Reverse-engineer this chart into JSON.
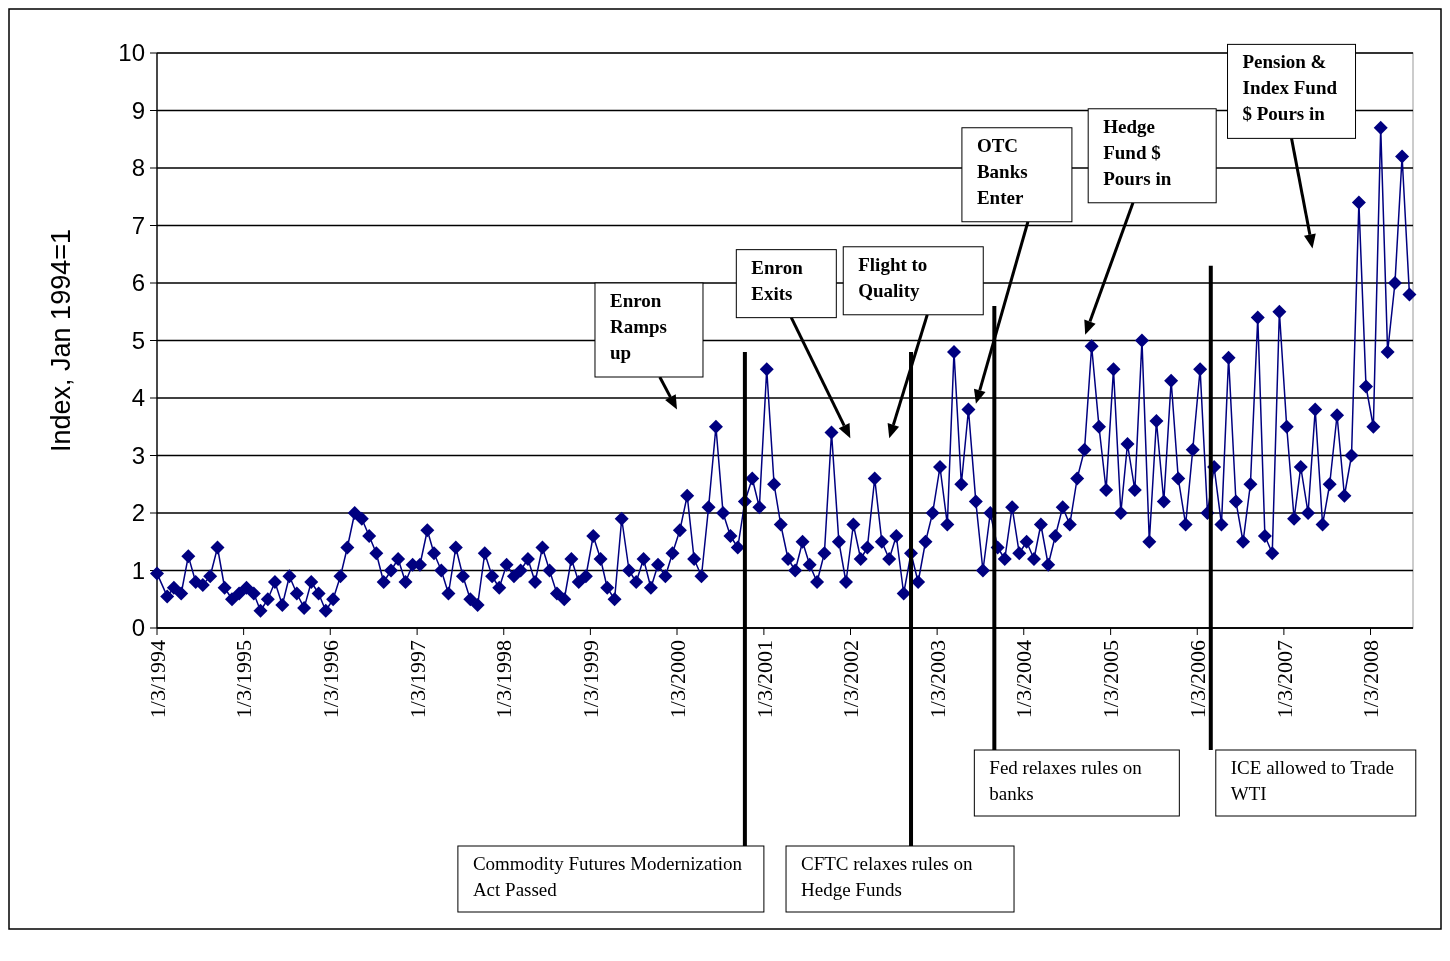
{
  "chart_data": {
    "type": "line",
    "ylabel": "Index, Jan 1994=1",
    "marker": "diamond",
    "grid": "y",
    "xlim": [
      "1994-01-03",
      "2008-06-30"
    ],
    "xticks": [
      {
        "value": "1994-01-03",
        "label": "1/3/1994"
      },
      {
        "value": "1995-01-03",
        "label": "1/3/1995"
      },
      {
        "value": "1996-01-03",
        "label": "1/3/1996"
      },
      {
        "value": "1997-01-03",
        "label": "1/3/1997"
      },
      {
        "value": "1998-01-03",
        "label": "1/3/1998"
      },
      {
        "value": "1999-01-03",
        "label": "1/3/1999"
      },
      {
        "value": "2000-01-03",
        "label": "1/3/2000"
      },
      {
        "value": "2001-01-03",
        "label": "1/3/2001"
      },
      {
        "value": "2002-01-03",
        "label": "1/3/2002"
      },
      {
        "value": "2003-01-03",
        "label": "1/3/2003"
      },
      {
        "value": "2004-01-03",
        "label": "1/3/2004"
      },
      {
        "value": "2005-01-03",
        "label": "1/3/2005"
      },
      {
        "value": "2006-01-03",
        "label": "1/3/2006"
      },
      {
        "value": "2007-01-03",
        "label": "1/3/2007"
      },
      {
        "value": "2008-01-03",
        "label": "1/3/2008"
      }
    ],
    "ylim": [
      0,
      10
    ],
    "yticks": [
      0,
      1,
      2,
      3,
      4,
      5,
      6,
      7,
      8,
      9,
      10
    ],
    "x": [
      "1994-01-03",
      "1994-02-15",
      "1994-03-15",
      "1994-04-15",
      "1994-05-15",
      "1994-06-15",
      "1994-07-15",
      "1994-08-15",
      "1994-09-15",
      "1994-10-15",
      "1994-11-15",
      "1994-12-15",
      "1995-01-15",
      "1995-02-15",
      "1995-03-15",
      "1995-04-15",
      "1995-05-15",
      "1995-06-15",
      "1995-07-15",
      "1995-08-15",
      "1995-09-15",
      "1995-10-15",
      "1995-11-15",
      "1995-12-15",
      "1996-01-15",
      "1996-02-15",
      "1996-03-15",
      "1996-04-15",
      "1996-05-15",
      "1996-06-15",
      "1996-07-15",
      "1996-08-15",
      "1996-09-15",
      "1996-10-15",
      "1996-11-15",
      "1996-12-15",
      "1997-01-15",
      "1997-02-15",
      "1997-03-15",
      "1997-04-15",
      "1997-05-15",
      "1997-06-15",
      "1997-07-15",
      "1997-08-15",
      "1997-09-15",
      "1997-10-15",
      "1997-11-15",
      "1997-12-15",
      "1998-01-15",
      "1998-02-15",
      "1998-03-15",
      "1998-04-15",
      "1998-05-15",
      "1998-06-15",
      "1998-07-15",
      "1998-08-15",
      "1998-09-15",
      "1998-10-15",
      "1998-11-15",
      "1998-12-15",
      "1999-01-15",
      "1999-02-15",
      "1999-03-15",
      "1999-04-15",
      "1999-05-15",
      "1999-06-15",
      "1999-07-15",
      "1999-08-15",
      "1999-09-15",
      "1999-10-15",
      "1999-11-15",
      "1999-12-15",
      "2000-01-15",
      "2000-02-15",
      "2000-03-15",
      "2000-04-15",
      "2000-05-15",
      "2000-06-15",
      "2000-07-15",
      "2000-08-15",
      "2000-09-15",
      "2000-10-15",
      "2000-11-15",
      "2000-12-15",
      "2001-01-15",
      "2001-02-15",
      "2001-03-15",
      "2001-04-15",
      "2001-05-15",
      "2001-06-15",
      "2001-07-15",
      "2001-08-15",
      "2001-09-15",
      "2001-10-15",
      "2001-11-15",
      "2001-12-15",
      "2002-01-15",
      "2002-02-15",
      "2002-03-15",
      "2002-04-15",
      "2002-05-15",
      "2002-06-15",
      "2002-07-15",
      "2002-08-15",
      "2002-09-15",
      "2002-10-15",
      "2002-11-15",
      "2002-12-15",
      "2003-01-15",
      "2003-02-15",
      "2003-03-15",
      "2003-04-15",
      "2003-05-15",
      "2003-06-15",
      "2003-07-15",
      "2003-08-15",
      "2003-09-15",
      "2003-10-15",
      "2003-11-15",
      "2003-12-15",
      "2004-01-15",
      "2004-02-15",
      "2004-03-15",
      "2004-04-15",
      "2004-05-15",
      "2004-06-15",
      "2004-07-15",
      "2004-08-15",
      "2004-09-15",
      "2004-10-15",
      "2004-11-15",
      "2004-12-15",
      "2005-01-15",
      "2005-02-15",
      "2005-03-15",
      "2005-04-15",
      "2005-05-15",
      "2005-06-15",
      "2005-07-15",
      "2005-08-15",
      "2005-09-15",
      "2005-10-15",
      "2005-11-15",
      "2005-12-15",
      "2006-01-15",
      "2006-02-15",
      "2006-03-15",
      "2006-04-15",
      "2006-05-15",
      "2006-06-15",
      "2006-07-15",
      "2006-08-15",
      "2006-09-15",
      "2006-10-15",
      "2006-11-15",
      "2006-12-15",
      "2007-01-15",
      "2007-02-15",
      "2007-03-15",
      "2007-04-15",
      "2007-05-15",
      "2007-06-15",
      "2007-07-15",
      "2007-08-15",
      "2007-09-15",
      "2007-10-15",
      "2007-11-15",
      "2007-12-15",
      "2008-01-15",
      "2008-02-15",
      "2008-03-15",
      "2008-04-15",
      "2008-05-15",
      "2008-06-15"
    ],
    "series": [
      {
        "color": "#000080",
        "values": [
          0.95,
          0.55,
          0.7,
          0.6,
          1.25,
          0.8,
          0.75,
          0.9,
          1.4,
          0.7,
          0.5,
          0.6,
          0.7,
          0.6,
          0.3,
          0.5,
          0.8,
          0.4,
          0.9,
          0.6,
          0.35,
          0.8,
          0.6,
          0.3,
          0.5,
          0.9,
          1.4,
          2.0,
          1.9,
          1.6,
          1.3,
          0.8,
          1.0,
          1.2,
          0.8,
          1.1,
          1.1,
          1.7,
          1.3,
          1.0,
          0.6,
          1.4,
          0.9,
          0.5,
          0.4,
          1.3,
          0.9,
          0.7,
          1.1,
          0.9,
          1.0,
          1.2,
          0.8,
          1.4,
          1.0,
          0.6,
          0.5,
          1.2,
          0.8,
          0.9,
          1.6,
          1.2,
          0.7,
          0.5,
          1.9,
          1.0,
          0.8,
          1.2,
          0.7,
          1.1,
          0.9,
          1.3,
          1.7,
          2.3,
          1.2,
          0.9,
          2.1,
          3.5,
          2.0,
          1.6,
          1.4,
          2.2,
          2.6,
          2.1,
          4.5,
          2.5,
          1.8,
          1.2,
          1.0,
          1.5,
          1.1,
          0.8,
          1.3,
          3.4,
          1.5,
          0.8,
          1.8,
          1.2,
          1.4,
          2.6,
          1.5,
          1.2,
          1.6,
          0.6,
          1.3,
          0.8,
          1.5,
          2.0,
          2.8,
          1.8,
          4.8,
          2.5,
          3.8,
          2.2,
          1.0,
          2.0,
          1.4,
          1.2,
          2.1,
          1.3,
          1.5,
          1.2,
          1.8,
          1.1,
          1.6,
          2.1,
          1.8,
          2.6,
          3.1,
          4.9,
          3.5,
          2.4,
          4.5,
          2.0,
          3.2,
          2.4,
          5.0,
          1.5,
          3.6,
          2.2,
          4.3,
          2.6,
          1.8,
          3.1,
          4.5,
          2.0,
          2.8,
          1.8,
          4.7,
          2.2,
          1.5,
          2.5,
          5.4,
          1.6,
          1.3,
          5.5,
          3.5,
          1.9,
          2.8,
          2.0,
          3.8,
          1.8,
          2.5,
          3.7,
          2.3,
          3.0,
          7.4,
          4.2,
          3.5,
          8.7,
          4.8,
          6.0,
          8.2,
          5.8
        ]
      }
    ],
    "ref_lines": [
      {
        "axis": "x",
        "value": "2000-10-15",
        "label": "Commodity Futures Modernization Act Passed",
        "color": "#000000"
      },
      {
        "axis": "x",
        "value": "2002-09-15",
        "label": "CFTC relaxes rules on Hedge Funds",
        "color": "#000000"
      },
      {
        "axis": "x",
        "value": "2003-09-01",
        "label": "Fed relaxes rules on banks",
        "color": "#000000"
      },
      {
        "axis": "x",
        "value": "2006-03-01",
        "label": "ICE allowed to Trade WTI",
        "color": "#000000"
      }
    ],
    "annotations": [
      "Enron Ramps up",
      "Enron Exits",
      "Flight to Quality",
      "OTC Banks Enter",
      "Hedge Fund $ Pours in",
      "Pension & Index Fund $ Pours in"
    ]
  }
}
